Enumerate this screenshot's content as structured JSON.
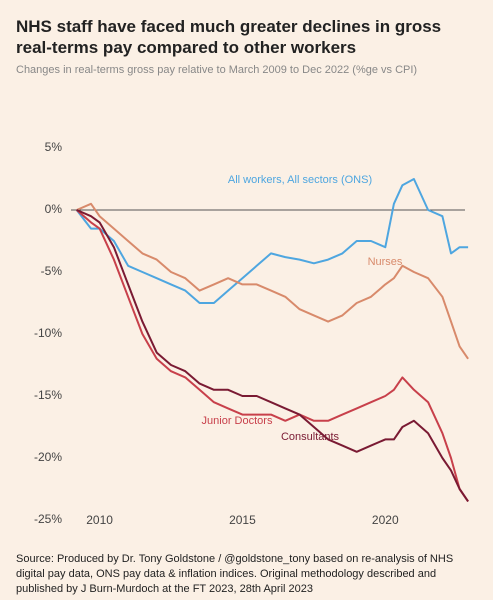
{
  "chart_data": {
    "type": "line",
    "title": "NHS staff have faced much greater declines in gross real-terms pay compared to other workers",
    "subtitle": "Changes in real-terms gross pay relative to March 2009 to Dec 2022 (%ge vs CPI)",
    "source": "Source: Produced by Dr. Tony Goldstone / @goldstone_tony based on re-analysis of NHS digital pay data, ONS pay data & inflation indices. Original methodology described and published by J Burn-Murdoch at the FT 2023, 28th April 2023",
    "x": [
      2009.2,
      2009.7,
      2010,
      2010.5,
      2011,
      2011.5,
      2012,
      2012.5,
      2013,
      2013.5,
      2014,
      2014.5,
      2015,
      2015.5,
      2016,
      2016.5,
      2017,
      2017.5,
      2018,
      2018.5,
      2019,
      2019.5,
      2020,
      2020.3,
      2020.6,
      2021,
      2021.5,
      2022,
      2022.3,
      2022.6,
      2022.9
    ],
    "series": [
      {
        "name": "All workers, All sectors (ONS)",
        "color": "#4ea6e0",
        "values": [
          0,
          -1.5,
          -1.5,
          -2.5,
          -4.5,
          -5,
          -5.5,
          -6,
          -6.5,
          -7.5,
          -7.5,
          -6.5,
          -5.5,
          -4.5,
          -3.5,
          -3.8,
          -4,
          -4.3,
          -4,
          -3.5,
          -2.5,
          -2.5,
          -3,
          0.5,
          2,
          2.5,
          0,
          -0.5,
          -3.5,
          -3,
          -3
        ]
      },
      {
        "name": "Nurses",
        "color": "#d88a6b",
        "values": [
          0,
          0.5,
          -0.5,
          -1.5,
          -2.5,
          -3.5,
          -4,
          -5,
          -5.5,
          -6.5,
          -6,
          -5.5,
          -6,
          -6,
          -6.5,
          -7,
          -8,
          -8.5,
          -9,
          -8.5,
          -7.5,
          -7,
          -6,
          -5.5,
          -4.5,
          -5,
          -5.5,
          -7,
          -9,
          -11,
          -12
        ]
      },
      {
        "name": "Junior Doctors",
        "color": "#c8404b",
        "values": [
          0,
          -1,
          -1.5,
          -4,
          -7,
          -10,
          -12,
          -13,
          -13.5,
          -14.5,
          -15.5,
          -16,
          -16.5,
          -16.5,
          -16.5,
          -17,
          -16.5,
          -17,
          -17,
          -16.5,
          -16,
          -15.5,
          -15,
          -14.5,
          -13.5,
          -14.5,
          -15.5,
          -18,
          -20,
          -22.5,
          -23.5
        ]
      },
      {
        "name": "Consultants",
        "color": "#7a1a33",
        "values": [
          0,
          -0.5,
          -1,
          -3,
          -6,
          -9,
          -11.5,
          -12.5,
          -13,
          -14,
          -14.5,
          -14.5,
          -15,
          -15,
          -15.5,
          -16,
          -16.5,
          -17.5,
          -18.5,
          -19,
          -19.5,
          -19,
          -18.5,
          -18.5,
          -17.5,
          -17,
          -18,
          -20,
          -21,
          -22.5,
          -23.5
        ]
      }
    ],
    "xlim": [
      2009,
      2023
    ],
    "xticks": [
      2010,
      2015,
      2020
    ],
    "ylim": [
      -25,
      5
    ],
    "yticks": [
      {
        "value": 5,
        "label": "5%"
      },
      {
        "value": 0,
        "label": "0%"
      },
      {
        "value": -5,
        "label": "-5%"
      },
      {
        "value": -10,
        "label": "-10%"
      },
      {
        "value": -15,
        "label": "-15%"
      },
      {
        "value": -20,
        "label": "-20%"
      },
      {
        "value": -25,
        "label": "-25%"
      }
    ],
    "zero_line": true
  }
}
